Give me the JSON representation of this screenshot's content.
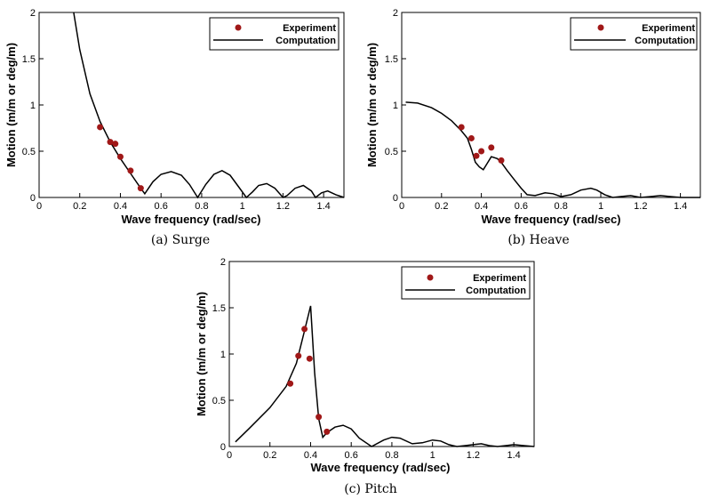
{
  "chart_data": [
    {
      "type": "line",
      "caption": "(a) Surge",
      "xlabel": "Wave frequency (rad/sec)",
      "ylabel": "Motion (m/m or deg/m)",
      "xlim": [
        0,
        1.5
      ],
      "ylim": [
        0,
        2
      ],
      "xticks": [
        "0",
        "0.2",
        "0.4",
        "0.6",
        "0.8",
        "1",
        "1.2",
        "1.4"
      ],
      "yticks": [
        "0",
        "0.5",
        "1",
        "1.5",
        "2"
      ],
      "legend": {
        "placement": "top-right",
        "entries": [
          "Experiment",
          "Computation"
        ]
      },
      "series": [
        {
          "name": "Experiment",
          "kind": "scatter",
          "color": "#a01818",
          "x": [
            0.3,
            0.35,
            0.375,
            0.4,
            0.45,
            0.5
          ],
          "y": [
            0.76,
            0.6,
            0.58,
            0.44,
            0.29,
            0.1
          ]
        },
        {
          "name": "Computation",
          "kind": "line",
          "color": "#000000",
          "x": [
            0.17,
            0.2,
            0.25,
            0.3,
            0.35,
            0.4,
            0.45,
            0.5,
            0.52,
            0.56,
            0.6,
            0.65,
            0.7,
            0.74,
            0.78,
            0.82,
            0.86,
            0.9,
            0.94,
            0.98,
            1.02,
            1.05,
            1.08,
            1.12,
            1.16,
            1.2,
            1.22,
            1.26,
            1.3,
            1.34,
            1.36,
            1.39,
            1.42,
            1.46,
            1.5
          ],
          "y": [
            2.0,
            1.6,
            1.12,
            0.82,
            0.6,
            0.42,
            0.26,
            0.1,
            0.04,
            0.17,
            0.25,
            0.28,
            0.24,
            0.14,
            0.0,
            0.14,
            0.25,
            0.29,
            0.24,
            0.12,
            0.0,
            0.06,
            0.13,
            0.15,
            0.1,
            0.0,
            0.02,
            0.1,
            0.13,
            0.07,
            0.0,
            0.05,
            0.07,
            0.03,
            0.0
          ]
        }
      ]
    },
    {
      "type": "line",
      "caption": "(b) Heave",
      "xlabel": "Wave frequency (rad/sec)",
      "ylabel": "Motion (m/m or deg/m)",
      "xlim": [
        0,
        1.5
      ],
      "ylim": [
        0,
        2
      ],
      "xticks": [
        "0",
        "0.2",
        "0.4",
        "0.6",
        "0.8",
        "1",
        "1.2",
        "1.4"
      ],
      "yticks": [
        "0",
        "0.5",
        "1",
        "1.5",
        "2"
      ],
      "legend": {
        "placement": "top-right",
        "entries": [
          "Experiment",
          "Computation"
        ]
      },
      "series": [
        {
          "name": "Experiment",
          "kind": "scatter",
          "color": "#a01818",
          "x": [
            0.3,
            0.35,
            0.375,
            0.4,
            0.45,
            0.5
          ],
          "y": [
            0.76,
            0.64,
            0.45,
            0.5,
            0.54,
            0.4
          ]
        },
        {
          "name": "Computation",
          "kind": "line",
          "color": "#000000",
          "x": [
            0.02,
            0.08,
            0.15,
            0.2,
            0.25,
            0.3,
            0.33,
            0.35,
            0.37,
            0.39,
            0.41,
            0.43,
            0.45,
            0.48,
            0.5,
            0.53,
            0.57,
            0.6,
            0.63,
            0.67,
            0.72,
            0.76,
            0.8,
            0.85,
            0.9,
            0.95,
            0.98,
            1.02,
            1.06,
            1.1,
            1.15,
            1.2,
            1.25,
            1.3,
            1.35,
            1.4,
            1.5
          ],
          "y": [
            1.03,
            1.02,
            0.97,
            0.91,
            0.83,
            0.72,
            0.64,
            0.52,
            0.38,
            0.33,
            0.3,
            0.37,
            0.44,
            0.42,
            0.38,
            0.29,
            0.18,
            0.1,
            0.03,
            0.02,
            0.05,
            0.04,
            0.01,
            0.03,
            0.08,
            0.1,
            0.08,
            0.03,
            0.0,
            0.01,
            0.02,
            0.0,
            0.01,
            0.02,
            0.01,
            0.0,
            0.0
          ]
        }
      ]
    },
    {
      "type": "line",
      "caption": "(c) Pitch",
      "xlabel": "Wave frequency (rad/sec)",
      "ylabel": "Motion (m/m or deg/m)",
      "xlim": [
        0,
        1.5
      ],
      "ylim": [
        0,
        2
      ],
      "xticks": [
        "0",
        "0.2",
        "0.4",
        "0.6",
        "0.8",
        "1",
        "1.2",
        "1.4"
      ],
      "yticks": [
        "0",
        "0.5",
        "1",
        "1.5",
        "2"
      ],
      "legend": {
        "placement": "top-right",
        "entries": [
          "Experiment",
          "Computation"
        ]
      },
      "series": [
        {
          "name": "Experiment",
          "kind": "scatter",
          "color": "#a01818",
          "x": [
            0.3,
            0.34,
            0.37,
            0.395,
            0.44,
            0.48
          ],
          "y": [
            0.68,
            0.98,
            1.27,
            0.95,
            0.32,
            0.16
          ]
        },
        {
          "name": "Computation",
          "kind": "line",
          "color": "#000000",
          "x": [
            0.03,
            0.1,
            0.2,
            0.28,
            0.33,
            0.37,
            0.4,
            0.42,
            0.44,
            0.46,
            0.48,
            0.52,
            0.56,
            0.6,
            0.64,
            0.7,
            0.76,
            0.8,
            0.84,
            0.9,
            0.95,
            1.0,
            1.04,
            1.08,
            1.12,
            1.16,
            1.2,
            1.24,
            1.28,
            1.32,
            1.36,
            1.4,
            1.45,
            1.5
          ],
          "y": [
            0.05,
            0.2,
            0.42,
            0.65,
            0.9,
            1.25,
            1.52,
            0.8,
            0.3,
            0.1,
            0.15,
            0.21,
            0.23,
            0.19,
            0.09,
            0.0,
            0.07,
            0.1,
            0.09,
            0.03,
            0.04,
            0.07,
            0.06,
            0.02,
            0.0,
            0.01,
            0.02,
            0.03,
            0.01,
            0.0,
            0.01,
            0.02,
            0.01,
            0.0
          ]
        }
      ]
    }
  ]
}
